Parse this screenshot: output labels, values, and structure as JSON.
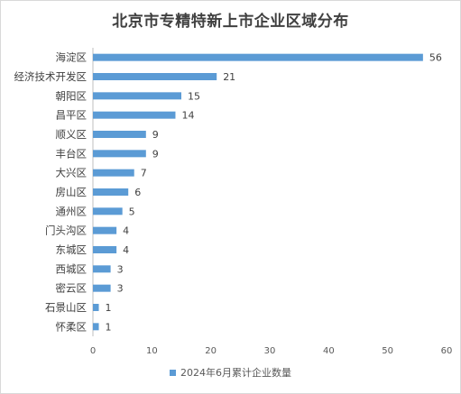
{
  "chart_data": {
    "type": "bar",
    "orientation": "horizontal",
    "title": "北京市专精特新上市企业区域分布",
    "categories": [
      "海淀区",
      "经济技术开发区",
      "朝阳区",
      "昌平区",
      "顺义区",
      "丰台区",
      "大兴区",
      "房山区",
      "通州区",
      "门头沟区",
      "东城区",
      "西城区",
      "密云区",
      "石景山区",
      "怀柔区"
    ],
    "series": [
      {
        "name": "2024年6月累计企业数量",
        "values": [
          56,
          21,
          15,
          14,
          9,
          9,
          7,
          6,
          5,
          4,
          4,
          3,
          3,
          1,
          1
        ],
        "color": "#5b9bd5"
      }
    ],
    "xlim": [
      0,
      60
    ],
    "xticks": [
      "0",
      "10",
      "20",
      "30",
      "40",
      "50",
      "60"
    ],
    "data_labels": true,
    "grid": false,
    "legend_position": "bottom"
  }
}
